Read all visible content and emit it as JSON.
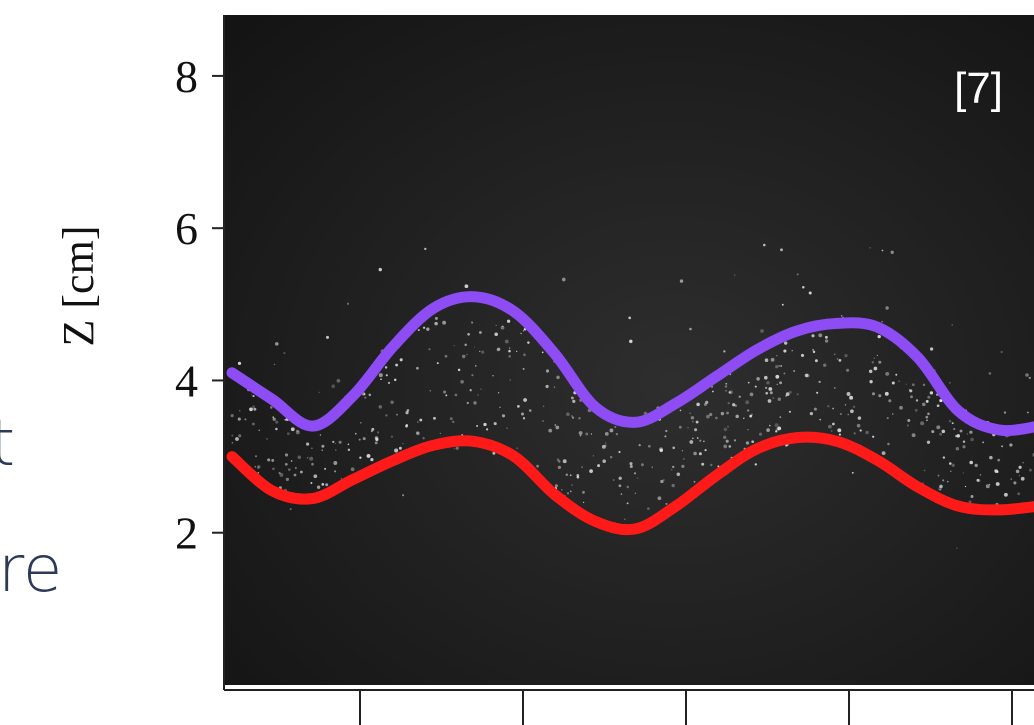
{
  "left_fragments": [
    "t",
    "re"
  ],
  "chart_data": {
    "type": "line",
    "title": "",
    "annotation": "[7]",
    "xlabel": "",
    "ylabel": "Z [cm]",
    "ylim": [
      0,
      8.8
    ],
    "yticks": [
      2,
      4,
      6,
      8
    ],
    "xticks_count": 5,
    "x": [
      0.0,
      0.05,
      0.1,
      0.15,
      0.2,
      0.25,
      0.3,
      0.35,
      0.4,
      0.45,
      0.5,
      0.55,
      0.6,
      0.65,
      0.7,
      0.75,
      0.8,
      0.85,
      0.9,
      0.95,
      1.0
    ],
    "background": "#1a1a1a",
    "series": [
      {
        "color": "#8e4cf5",
        "values": [
          4.1,
          3.75,
          3.4,
          3.8,
          4.45,
          4.95,
          5.1,
          4.9,
          4.35,
          3.65,
          3.45,
          3.7,
          4.05,
          4.4,
          4.65,
          4.75,
          4.7,
          4.3,
          3.6,
          3.35,
          3.4
        ]
      },
      {
        "color": "#ff1a1a",
        "values": [
          3.0,
          2.55,
          2.45,
          2.7,
          2.95,
          3.15,
          3.2,
          3.0,
          2.5,
          2.15,
          2.05,
          2.35,
          2.75,
          3.1,
          3.25,
          3.2,
          2.95,
          2.6,
          2.35,
          2.3,
          2.35
        ]
      }
    ]
  }
}
